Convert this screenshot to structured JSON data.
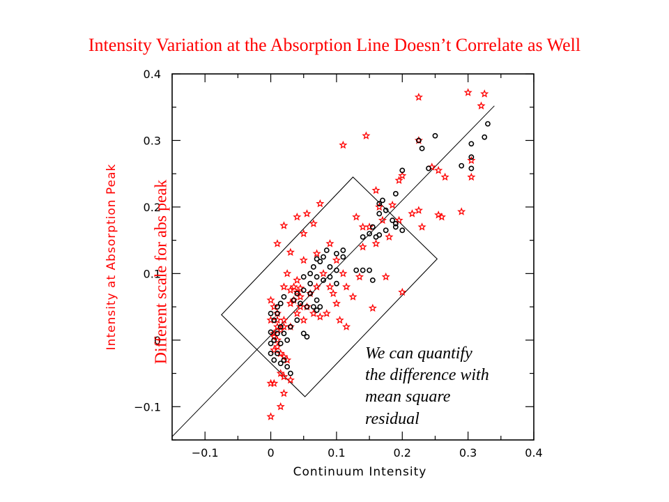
{
  "slide": {
    "title": "Intensity Variation at the Absorption Line Doesn’t Correlate as Well",
    "rotated_note": "Different  scale for abs peak",
    "annotation_lines": [
      "We can quantify",
      "the difference with",
      "mean square",
      "residual"
    ],
    "title_color": "#ff0000"
  },
  "chart_data": {
    "type": "scatter",
    "xlabel": "Continuum Intensity",
    "ylabel": "Intensity at Absorption Peak",
    "xlim": [
      -0.15,
      0.4
    ],
    "ylim": [
      -0.15,
      0.4
    ],
    "x_ticks": [
      -0.1,
      0,
      0.1,
      0.2,
      0.3,
      0.4
    ],
    "x_tick_labels": [
      "−0.1",
      "0",
      "0.1",
      "0.2",
      "0.3",
      "0.4"
    ],
    "y_ticks": [
      -0.1,
      0,
      0.1,
      0.2,
      0.3,
      0.4
    ],
    "y_tick_labels": [
      "−0.1",
      "0",
      "0.1",
      "0.2",
      "0.3",
      "0.4"
    ],
    "xlabel_color": "#000000",
    "ylabel_color": "#ff0000",
    "star_color": "#ff0000",
    "circle_color": "#000000",
    "grid": false,
    "reference_line": {
      "from": [
        -0.15,
        -0.145
      ],
      "to": [
        0.34,
        0.352
      ]
    },
    "box": [
      [
        -0.075,
        0.038
      ],
      [
        0.125,
        0.245
      ],
      [
        0.253,
        0.122
      ],
      [
        0.052,
        -0.085
      ]
    ],
    "series": [
      {
        "marker": "star",
        "points": [
          [
            0.225,
            0.365
          ],
          [
            0.3,
            0.372
          ],
          [
            0.325,
            0.37
          ],
          [
            0.32,
            0.352
          ],
          [
            0.305,
            0.27
          ],
          [
            0.305,
            0.245
          ],
          [
            0.225,
            0.3
          ],
          [
            0.145,
            0.307
          ],
          [
            0.11,
            0.293
          ],
          [
            0.265,
            0.245
          ],
          [
            0.255,
            0.255
          ],
          [
            0.245,
            0.26
          ],
          [
            0.195,
            0.24
          ],
          [
            0.2,
            0.247
          ],
          [
            0.16,
            0.225
          ],
          [
            0.185,
            0.203
          ],
          [
            0.225,
            0.195
          ],
          [
            0.26,
            0.185
          ],
          [
            0.29,
            0.193
          ],
          [
            0.23,
            0.17
          ],
          [
            0.255,
            0.188
          ],
          [
            0.17,
            0.18
          ],
          [
            0.14,
            0.17
          ],
          [
            0.13,
            0.185
          ],
          [
            0.195,
            0.18
          ],
          [
            0.215,
            0.19
          ],
          [
            0.165,
            0.2
          ],
          [
            0.15,
            0.17
          ],
          [
            0.14,
            0.14
          ],
          [
            0.16,
            0.145
          ],
          [
            0.18,
            0.155
          ],
          [
            0.135,
            0.095
          ],
          [
            0.175,
            0.095
          ],
          [
            0.2,
            0.072
          ],
          [
            0.155,
            0.048
          ],
          [
            0.115,
            0.02
          ],
          [
            0.105,
            0.03
          ],
          [
            0.09,
            0.145
          ],
          [
            0.075,
            0.205
          ],
          [
            0.04,
            0.185
          ],
          [
            0.055,
            0.19
          ],
          [
            0.065,
            0.175
          ],
          [
            0.02,
            0.172
          ],
          [
            0.01,
            0.145
          ],
          [
            0.03,
            0.132
          ],
          [
            0.05,
            0.12
          ],
          [
            0.05,
            0.16
          ],
          [
            0.07,
            0.13
          ],
          [
            0.08,
            0.1
          ],
          [
            0.1,
            0.12
          ],
          [
            0.09,
            0.08
          ],
          [
            0.04,
            0.09
          ],
          [
            0.02,
            0.08
          ],
          [
            0.025,
            0.1
          ],
          [
            0.03,
            0.055
          ],
          [
            0.01,
            0.04
          ],
          [
            0.02,
            0.03
          ],
          [
            0.04,
            0.04
          ],
          [
            0.03,
            0.02
          ],
          [
            0.045,
            0.065
          ],
          [
            0.06,
            0.07
          ],
          [
            0.07,
            0.08
          ],
          [
            0.055,
            0.05
          ],
          [
            0.065,
            0.04
          ],
          [
            0.075,
            0.035
          ],
          [
            0.05,
            0.03
          ],
          [
            0.085,
            0.04
          ],
          [
            0.1,
            0.055
          ],
          [
            0.095,
            0.07
          ],
          [
            0.115,
            0.08
          ],
          [
            0.125,
            0.065
          ],
          [
            0.11,
            0.1
          ],
          [
            0.03,
            0.075
          ],
          [
            0.04,
            0.072
          ],
          [
            0.035,
            0.08
          ],
          [
            0.045,
            0.078
          ],
          [
            0.035,
            0.06
          ],
          [
            0.045,
            0.05
          ],
          [
            0.0,
            0.06
          ],
          [
            0.005,
            0.05
          ],
          [
            0.01,
            0.03
          ],
          [
            0.005,
            0.01
          ],
          [
            0.01,
            0.0
          ],
          [
            0.01,
            -0.01
          ],
          [
            0.005,
            -0.015
          ],
          [
            0.015,
            -0.02
          ],
          [
            0.02,
            -0.025
          ],
          [
            0.025,
            -0.03
          ],
          [
            0.015,
            -0.05
          ],
          [
            0.02,
            -0.055
          ],
          [
            0.03,
            -0.06
          ],
          [
            0.0,
            -0.065
          ],
          [
            0.005,
            -0.065
          ],
          [
            0.02,
            -0.08
          ],
          [
            0.015,
            -0.1
          ],
          [
            0.0,
            -0.115
          ],
          [
            0.01,
            0.02
          ],
          [
            0.015,
            0.015
          ],
          [
            0.02,
            0.02
          ],
          [
            0.005,
            0.005
          ],
          [
            0.0,
            0.03
          ]
        ]
      },
      {
        "marker": "circle",
        "points": [
          [
            0.33,
            0.325
          ],
          [
            0.325,
            0.305
          ],
          [
            0.305,
            0.295
          ],
          [
            0.305,
            0.275
          ],
          [
            0.305,
            0.258
          ],
          [
            0.29,
            0.262
          ],
          [
            0.225,
            0.3
          ],
          [
            0.23,
            0.288
          ],
          [
            0.25,
            0.307
          ],
          [
            0.24,
            0.258
          ],
          [
            0.2,
            0.255
          ],
          [
            0.19,
            0.22
          ],
          [
            0.17,
            0.21
          ],
          [
            0.165,
            0.205
          ],
          [
            0.165,
            0.19
          ],
          [
            0.175,
            0.195
          ],
          [
            0.185,
            0.18
          ],
          [
            0.19,
            0.17
          ],
          [
            0.2,
            0.165
          ],
          [
            0.19,
            0.175
          ],
          [
            0.175,
            0.165
          ],
          [
            0.165,
            0.158
          ],
          [
            0.155,
            0.17
          ],
          [
            0.16,
            0.155
          ],
          [
            0.15,
            0.16
          ],
          [
            0.14,
            0.155
          ],
          [
            0.13,
            0.105
          ],
          [
            0.14,
            0.105
          ],
          [
            0.15,
            0.105
          ],
          [
            0.155,
            0.09
          ],
          [
            0.11,
            0.135
          ],
          [
            0.11,
            0.125
          ],
          [
            0.1,
            0.13
          ],
          [
            0.085,
            0.135
          ],
          [
            0.08,
            0.125
          ],
          [
            0.075,
            0.118
          ],
          [
            0.07,
            0.122
          ],
          [
            0.065,
            0.11
          ],
          [
            0.09,
            0.11
          ],
          [
            0.1,
            0.105
          ],
          [
            0.09,
            0.095
          ],
          [
            0.1,
            0.085
          ],
          [
            0.08,
            0.09
          ],
          [
            0.07,
            0.095
          ],
          [
            0.06,
            0.1
          ],
          [
            0.05,
            0.095
          ],
          [
            0.06,
            0.085
          ],
          [
            0.05,
            0.075
          ],
          [
            0.04,
            0.07
          ],
          [
            0.06,
            0.07
          ],
          [
            0.07,
            0.06
          ],
          [
            0.055,
            0.05
          ],
          [
            0.065,
            0.05
          ],
          [
            0.07,
            0.045
          ],
          [
            0.075,
            0.05
          ],
          [
            0.045,
            0.055
          ],
          [
            0.035,
            0.06
          ],
          [
            0.04,
            0.03
          ],
          [
            0.05,
            0.01
          ],
          [
            0.055,
            0.005
          ],
          [
            0.03,
            0.02
          ],
          [
            0.02,
            0.065
          ],
          [
            0.015,
            0.055
          ],
          [
            0.01,
            0.05
          ],
          [
            0.01,
            0.04
          ],
          [
            0.005,
            0.03
          ],
          [
            0.015,
            0.02
          ],
          [
            0.02,
            0.01
          ],
          [
            0.01,
            0.01
          ],
          [
            0.0,
            0.012
          ],
          [
            0.005,
            0.0
          ],
          [
            0.0,
            -0.005
          ],
          [
            0.01,
            -0.02
          ],
          [
            0.02,
            -0.03
          ],
          [
            0.025,
            -0.04
          ],
          [
            0.015,
            -0.035
          ],
          [
            0.03,
            -0.05
          ],
          [
            0.0,
            -0.02
          ],
          [
            0.005,
            -0.03
          ],
          [
            0.015,
            -0.005
          ],
          [
            0.025,
            0.0
          ],
          [
            0.0,
            0.04
          ]
        ]
      }
    ]
  }
}
